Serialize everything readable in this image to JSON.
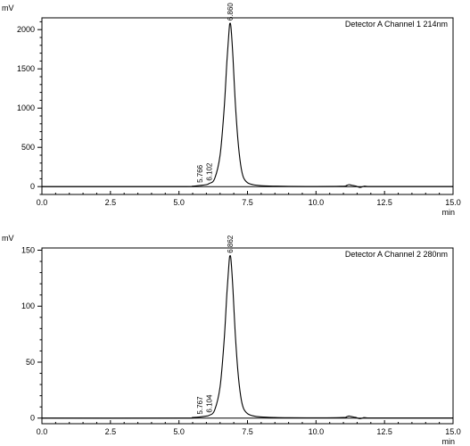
{
  "chart_data": [
    {
      "type": "line",
      "title": "Detector A Channel 1 214nm",
      "ylabel": "mV",
      "xlabel": "min",
      "xlim": [
        0,
        15
      ],
      "ylim": [
        -100,
        2150
      ],
      "xticks": [
        "0.0",
        "2.5",
        "5.0",
        "7.5",
        "10.0",
        "12.5",
        "15.0"
      ],
      "yticks": [
        0,
        500,
        1000,
        1500,
        2000
      ],
      "ytick_labels": [
        "0",
        "500",
        "1000",
        "1500",
        "2000"
      ],
      "peaks": [
        {
          "label": "5.766",
          "x": 5.766,
          "y": 15
        },
        {
          "label": "6.102",
          "x": 6.102,
          "y": 40
        },
        {
          "label": "6.860",
          "x": 6.86,
          "y": 2080
        }
      ],
      "series": [
        {
          "x": [
            0,
            5.0,
            5.5,
            5.766,
            6.0,
            6.102,
            6.3,
            6.5,
            6.65,
            6.75,
            6.83,
            6.86,
            6.9,
            6.97,
            7.05,
            7.15,
            7.25,
            7.35,
            7.5,
            7.7,
            8.0,
            8.5,
            9.0,
            10.0,
            11.0,
            11.1,
            11.2,
            11.3,
            11.45,
            11.6,
            11.75,
            11.85,
            12.0,
            15.0
          ],
          "y": [
            0,
            0,
            5,
            15,
            25,
            40,
            100,
            400,
            1000,
            1600,
            2000,
            2080,
            2020,
            1650,
            1100,
            600,
            280,
            120,
            50,
            25,
            12,
            6,
            3,
            2,
            5,
            12,
            25,
            18,
            8,
            -10,
            5,
            3,
            2,
            2
          ]
        }
      ]
    },
    {
      "type": "line",
      "title": "Detector A Channel 2 280nm",
      "ylabel": "mV",
      "xlabel": "min",
      "xlim": [
        0,
        15
      ],
      "ylim": [
        -5,
        152
      ],
      "xticks": [
        "0.0",
        "2.5",
        "5.0",
        "7.5",
        "10.0",
        "12.5",
        "15.0"
      ],
      "yticks": [
        0,
        50,
        100,
        150
      ],
      "ytick_labels": [
        "0",
        "50",
        "100",
        "150"
      ],
      "peaks": [
        {
          "label": "5.767",
          "x": 5.767,
          "y": 1
        },
        {
          "label": "6.104",
          "x": 6.104,
          "y": 2.5
        },
        {
          "label": "6.862",
          "x": 6.862,
          "y": 145
        }
      ],
      "series": [
        {
          "x": [
            0,
            5.0,
            5.5,
            5.767,
            6.0,
            6.104,
            6.3,
            6.5,
            6.65,
            6.75,
            6.83,
            6.862,
            6.9,
            6.97,
            7.05,
            7.15,
            7.25,
            7.35,
            7.5,
            7.7,
            8.0,
            8.5,
            9.0,
            10.0,
            11.0,
            11.1,
            11.2,
            11.3,
            11.45,
            11.6,
            11.75,
            11.85,
            12.0,
            15.0
          ],
          "y": [
            0,
            0,
            0.5,
            1,
            1.8,
            2.5,
            7,
            28,
            70,
            112,
            140,
            145,
            141,
            115,
            77,
            42,
            20,
            9,
            4,
            2,
            1,
            0.5,
            0.3,
            0.2,
            0.5,
            1,
            1.8,
            1.3,
            0.6,
            -0.5,
            0.4,
            0.2,
            0.1,
            0.1
          ]
        }
      ]
    }
  ]
}
